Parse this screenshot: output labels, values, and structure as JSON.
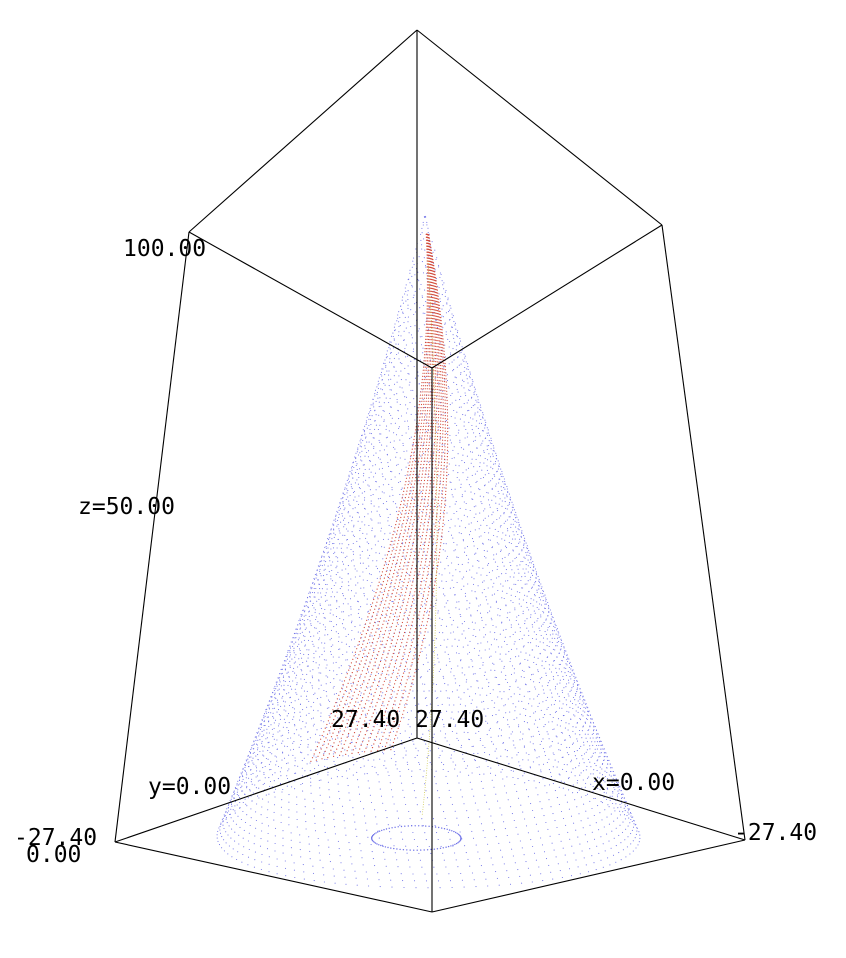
{
  "chart_data": {
    "type": "scatter",
    "dimensions": 3,
    "title": "",
    "axes": {
      "x": {
        "label_text": "x=0.00",
        "min": -27.4,
        "max": 27.4,
        "min_label": "-27.40",
        "max_label": "27.40"
      },
      "y": {
        "label_text": "y=0.00",
        "min": -27.4,
        "max": 27.4,
        "min_label": "-27.40",
        "max_label": "27.40"
      },
      "z": {
        "label_text": "z=50.00",
        "min": 0.0,
        "max": 100.0,
        "min_label": "0.00",
        "max_label": "100.00"
      }
    },
    "surface": {
      "shape": "cone",
      "apex_z": 100,
      "base_radius": 26,
      "color": "#6f72e8"
    },
    "series": [
      {
        "shape": "spiral-band",
        "color": "#d24a3a"
      },
      {
        "shape": "thin-helix",
        "color": "#c8c23a"
      }
    ],
    "grid": false,
    "legend": "none"
  }
}
